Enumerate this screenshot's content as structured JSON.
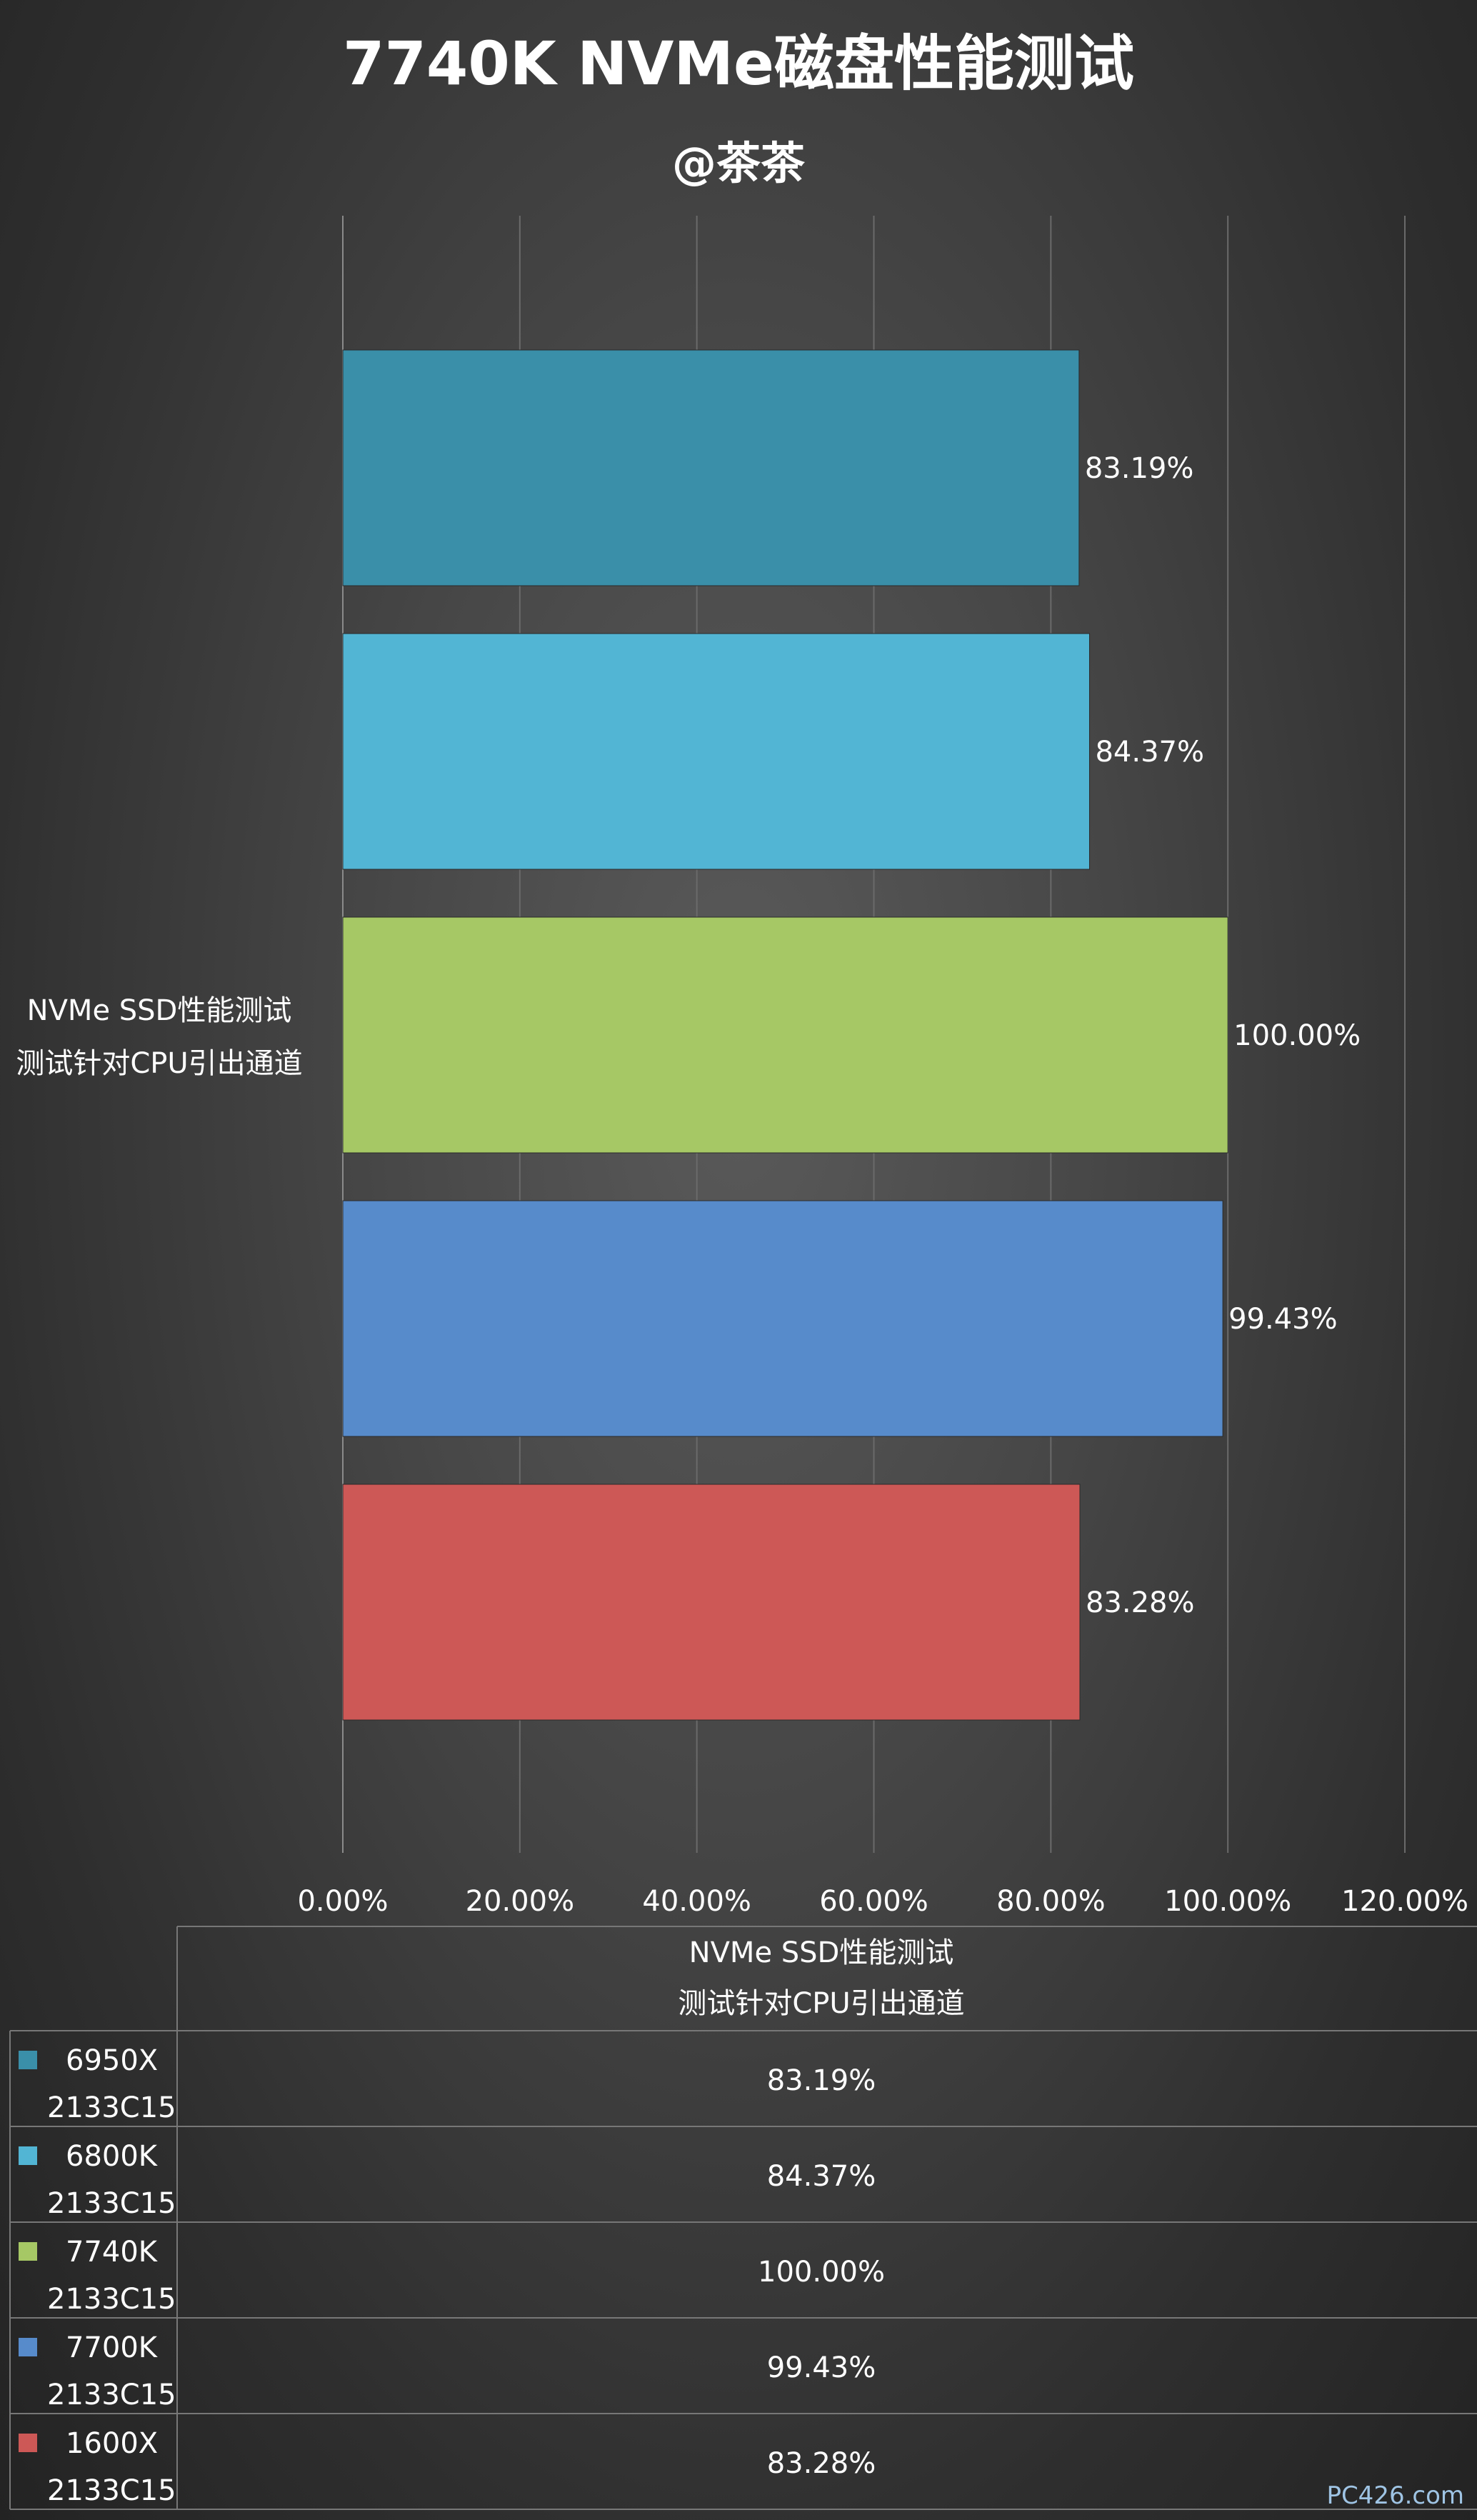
{
  "chart_data": {
    "type": "bar",
    "orientation": "horizontal",
    "title": "7740K NVMe磁盘性能测试",
    "subtitle": "@茶茶",
    "category_lines": [
      "NVMe SSD性能测试",
      "测试针对CPU引出通道"
    ],
    "xlim": [
      0,
      120
    ],
    "x_ticks": [
      "0.00%",
      "20.00%",
      "40.00%",
      "60.00%",
      "80.00%",
      "100.00%",
      "120.00%"
    ],
    "grid": true,
    "legend": "data-table-bottom",
    "series": [
      {
        "name": "6950X 2133C15",
        "name_line1": "6950X",
        "name_line2": "2133C15",
        "value": 83.19,
        "label": "83.19%",
        "color": "#3a8fa9"
      },
      {
        "name": "6800K 2133C15",
        "name_line1": "6800K",
        "name_line2": "2133C15",
        "value": 84.37,
        "label": "84.37%",
        "color": "#52b5d4"
      },
      {
        "name": "7740K 2133C15",
        "name_line1": "7740K",
        "name_line2": "2133C15",
        "value": 100.0,
        "label": "100.00%",
        "color": "#a6c865"
      },
      {
        "name": "7700K 2133C15",
        "name_line1": "7700K",
        "name_line2": "2133C15",
        "value": 99.43,
        "label": "99.43%",
        "color": "#578bcb"
      },
      {
        "name": "1600X 2133C15",
        "name_line1": "1600X",
        "name_line2": "2133C15",
        "value": 83.28,
        "label": "83.28%",
        "color": "#cd5856"
      }
    ]
  },
  "watermark": "PC426.com"
}
